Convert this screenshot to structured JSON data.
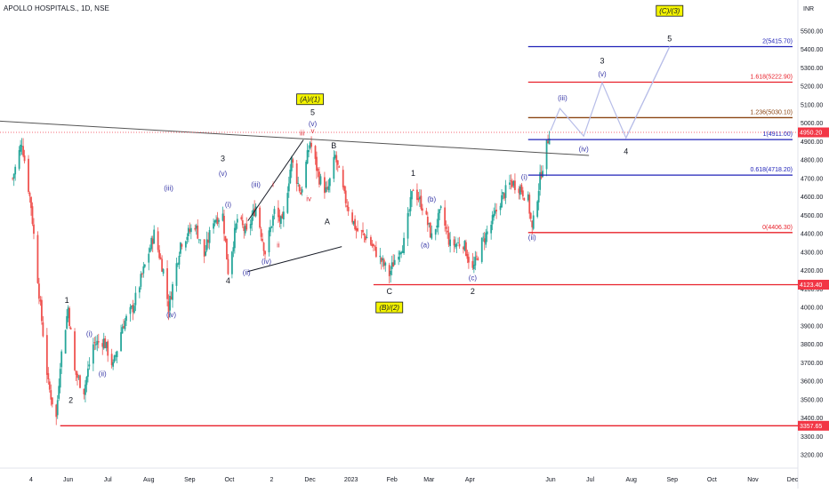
{
  "header": {
    "title": "APOLLO HOSPITALS., 1D, NSE"
  },
  "colors": {
    "up": "#26a69a",
    "down": "#ef5350",
    "wave_major": "#131722",
    "wave_minor": "#3939a8",
    "wave_sub": "#e0303a",
    "fib_blue": "#1f22b8",
    "fib_red": "#e8202a",
    "fib_brown": "#8b4513",
    "label_yellow": "#f5f500",
    "projection": "#b7bde8",
    "last_price_bg": "#f23645"
  },
  "chart_data": {
    "type": "candlestick",
    "title": "APOLLO HOSPITALS., 1D, NSE",
    "currency": "INR",
    "ylim": [
      3150,
      5640
    ],
    "y_ticks": [
      3200,
      3300,
      3400,
      3500,
      3600,
      3700,
      3800,
      3900,
      4000,
      4100,
      4200,
      4300,
      4400,
      4500,
      4600,
      4700,
      4800,
      4900,
      5000,
      5100,
      5200,
      5300,
      5400,
      5500
    ],
    "y_tick_labels": [
      "3200.00",
      "3300.00",
      "3400.00",
      "3500.00",
      "3600.00",
      "3700.00",
      "3800.00",
      "3900.00",
      "4000.00",
      "4100.00",
      "4200.00",
      "4300.00",
      "4400.00",
      "4500.00",
      "4600.00",
      "4700.00",
      "4800.00",
      "4900.00",
      "5000.00",
      "5100.00",
      "5200.00",
      "5300.00",
      "5400.00",
      "5500.00"
    ],
    "x_ticks": [
      {
        "label": "4",
        "date": "2022-05-04"
      },
      {
        "label": "Jun",
        "date": "2022-06-01"
      },
      {
        "label": "Jul",
        "date": "2022-07-01"
      },
      {
        "label": "Aug",
        "date": "2022-08-01"
      },
      {
        "label": "Sep",
        "date": "2022-09-01"
      },
      {
        "label": "Oct",
        "date": "2022-10-01"
      },
      {
        "label": "2",
        "date": "2022-11-02"
      },
      {
        "label": "Dec",
        "date": "2022-12-01"
      },
      {
        "label": "2023",
        "date": "2023-01-01"
      },
      {
        "label": "Feb",
        "date": "2023-02-01"
      },
      {
        "label": "Mar",
        "date": "2023-03-01"
      },
      {
        "label": "Apr",
        "date": "2023-04-01"
      },
      {
        "label": "Jun",
        "date": "2023-06-01"
      },
      {
        "label": "Jul",
        "date": "2023-07-01"
      },
      {
        "label": "Aug",
        "date": "2023-08-01"
      },
      {
        "label": "Sep",
        "date": "2023-09-01"
      },
      {
        "label": "Oct",
        "date": "2023-10-01"
      },
      {
        "label": "Nov",
        "date": "2023-11-01"
      },
      {
        "label": "Dec",
        "date": "2023-12-01"
      }
    ],
    "price_path": [
      [
        "2022-04-20",
        4700
      ],
      [
        "2022-04-27",
        4900
      ],
      [
        "2022-05-04",
        4550
      ],
      [
        "2022-05-11",
        4000
      ],
      [
        "2022-05-17",
        3580
      ],
      [
        "2022-05-23",
        3400
      ],
      [
        "2022-05-26",
        3700
      ],
      [
        "2022-06-01",
        4000
      ],
      [
        "2022-06-06",
        3650
      ],
      [
        "2022-06-13",
        3550
      ],
      [
        "2022-06-20",
        3800
      ],
      [
        "2022-06-28",
        3820
      ],
      [
        "2022-07-05",
        3680
      ],
      [
        "2022-07-12",
        3900
      ],
      [
        "2022-07-20",
        4000
      ],
      [
        "2022-07-28",
        4200
      ],
      [
        "2022-08-05",
        4400
      ],
      [
        "2022-08-12",
        4200
      ],
      [
        "2022-08-16",
        4000
      ],
      [
        "2022-08-25",
        4350
      ],
      [
        "2022-09-05",
        4450
      ],
      [
        "2022-09-12",
        4280
      ],
      [
        "2022-09-19",
        4480
      ],
      [
        "2022-09-26",
        4500
      ],
      [
        "2022-09-30",
        4200
      ],
      [
        "2022-10-07",
        4480
      ],
      [
        "2022-10-14",
        4400
      ],
      [
        "2022-10-21",
        4550
      ],
      [
        "2022-10-28",
        4300
      ],
      [
        "2022-11-04",
        4520
      ],
      [
        "2022-11-10",
        4450
      ],
      [
        "2022-11-17",
        4800
      ],
      [
        "2022-11-24",
        4620
      ],
      [
        "2022-12-01",
        4900
      ],
      [
        "2022-12-08",
        4700
      ],
      [
        "2022-12-14",
        4620
      ],
      [
        "2022-12-20",
        4820
      ],
      [
        "2022-12-27",
        4600
      ],
      [
        "2023-01-05",
        4420
      ],
      [
        "2023-01-13",
        4380
      ],
      [
        "2023-01-20",
        4300
      ],
      [
        "2023-01-30",
        4180
      ],
      [
        "2023-02-05",
        4300
      ],
      [
        "2023-02-10",
        4350
      ],
      [
        "2023-02-17",
        4650
      ],
      [
        "2023-02-24",
        4550
      ],
      [
        "2023-03-03",
        4380
      ],
      [
        "2023-03-10",
        4520
      ],
      [
        "2023-03-17",
        4340
      ],
      [
        "2023-03-27",
        4350
      ],
      [
        "2023-04-03",
        4200
      ],
      [
        "2023-04-10",
        4350
      ],
      [
        "2023-04-17",
        4450
      ],
      [
        "2023-04-24",
        4580
      ],
      [
        "2023-05-02",
        4680
      ],
      [
        "2023-05-09",
        4650
      ],
      [
        "2023-05-15",
        4580
      ],
      [
        "2023-05-18",
        4420
      ],
      [
        "2023-05-24",
        4700
      ],
      [
        "2023-05-31",
        4950
      ]
    ],
    "price_lines": [
      {
        "label": "2(5415.70)",
        "value": 5415.7,
        "color": "fib_blue",
        "from": "2023-05-15"
      },
      {
        "label": "1.618(5222.90)",
        "value": 5222.9,
        "color": "fib_red",
        "from": "2023-05-15"
      },
      {
        "label": "1.236(5030.10)",
        "value": 5030.1,
        "color": "fib_brown",
        "from": "2023-05-15"
      },
      {
        "label": "1(4911.00)",
        "value": 4911,
        "color": "fib_blue",
        "from": "2023-05-15"
      },
      {
        "label": "0.618(4718.20)",
        "value": 4718.2,
        "color": "fib_blue",
        "from": "2023-05-15"
      },
      {
        "label": "0(4406.30)",
        "value": 4406.3,
        "color": "fib_red",
        "from": "2023-05-15"
      }
    ],
    "horizontal_lines": [
      {
        "value": 3357.65,
        "label": "3357.65",
        "color": "fib_red",
        "from": "2022-05-26"
      },
      {
        "value": 4123.4,
        "label": "4123.40",
        "color": "fib_red",
        "from": "2023-01-18"
      }
    ],
    "last_price": {
      "value": 4950.2,
      "label": "4950.20"
    },
    "trendlines": [
      {
        "p1": [
          "2022-03-20",
          5020
        ],
        "p2": [
          "2023-06-30",
          4825
        ],
        "color": "#555555"
      },
      {
        "p1": [
          "2022-10-15",
          4470
        ],
        "p2": [
          "2022-11-26",
          4910
        ],
        "color": "#131722"
      },
      {
        "p1": [
          "2022-10-15",
          4195
        ],
        "p2": [
          "2022-12-25",
          4330
        ],
        "color": "#131722"
      }
    ],
    "projection_path": [
      [
        "2023-06-01",
        4960
      ],
      [
        "2023-06-08",
        5080
      ],
      [
        "2023-06-26",
        4930
      ],
      [
        "2023-07-10",
        5220
      ],
      [
        "2023-07-28",
        4920
      ],
      [
        "2023-08-30",
        5415
      ]
    ],
    "wave_labels": [
      {
        "text": "1",
        "date": "2022-05-31",
        "price": 4010,
        "pos": "above",
        "color": "wave_major"
      },
      {
        "text": "2",
        "date": "2022-06-03",
        "price": 3530,
        "pos": "below",
        "color": "wave_major"
      },
      {
        "text": "(i)",
        "date": "2022-06-17",
        "price": 3830,
        "pos": "above",
        "color": "wave_minor"
      },
      {
        "text": "(ii)",
        "date": "2022-06-27",
        "price": 3670,
        "pos": "below",
        "color": "wave_minor"
      },
      {
        "text": "(iii)",
        "date": "2022-08-16",
        "price": 4620,
        "pos": "above",
        "color": "wave_minor"
      },
      {
        "text": "(iv)",
        "date": "2022-08-18",
        "price": 3990,
        "pos": "below",
        "color": "wave_minor"
      },
      {
        "text": "3",
        "date": "2022-09-26",
        "price": 4780,
        "pos": "above",
        "color": "wave_major"
      },
      {
        "text": "(v)",
        "date": "2022-09-26",
        "price": 4700,
        "pos": "above",
        "color": "wave_minor"
      },
      {
        "text": "(i)",
        "date": "2022-09-30",
        "price": 4530,
        "pos": "above",
        "color": "wave_minor"
      },
      {
        "text": "4",
        "date": "2022-09-30",
        "price": 4180,
        "pos": "below",
        "color": "wave_major"
      },
      {
        "text": "(ii)",
        "date": "2022-10-14",
        "price": 4220,
        "pos": "below",
        "color": "wave_minor"
      },
      {
        "text": "(iii)",
        "date": "2022-10-21",
        "price": 4640,
        "pos": "above",
        "color": "wave_minor"
      },
      {
        "text": "i",
        "date": "2022-11-03",
        "price": 4640,
        "pos": "above",
        "color": "wave_sub"
      },
      {
        "text": "(iv)",
        "date": "2022-10-29",
        "price": 4280,
        "pos": "below",
        "color": "wave_minor"
      },
      {
        "text": "ii",
        "date": "2022-11-07",
        "price": 4370,
        "pos": "below",
        "color": "wave_sub"
      },
      {
        "text": "iii",
        "date": "2022-11-25",
        "price": 4920,
        "pos": "above",
        "color": "wave_sub"
      },
      {
        "text": "iv",
        "date": "2022-11-30",
        "price": 4620,
        "pos": "below",
        "color": "wave_sub"
      },
      {
        "text": "v",
        "date": "2022-12-03",
        "price": 4930,
        "pos": "above",
        "color": "wave_sub"
      },
      {
        "text": "(v)",
        "date": "2022-12-03",
        "price": 4970,
        "pos": "above",
        "color": "wave_minor"
      },
      {
        "text": "5",
        "date": "2022-12-03",
        "price": 5030,
        "pos": "above",
        "color": "wave_major"
      },
      {
        "text": "B",
        "date": "2022-12-19",
        "price": 4850,
        "pos": "above",
        "color": "wave_major"
      },
      {
        "text": "A",
        "date": "2022-12-14",
        "price": 4500,
        "pos": "below",
        "color": "wave_major"
      },
      {
        "text": "C",
        "date": "2023-01-30",
        "price": 4120,
        "pos": "below",
        "color": "wave_major"
      },
      {
        "text": "1",
        "date": "2023-02-17",
        "price": 4700,
        "pos": "above",
        "color": "wave_major"
      },
      {
        "text": "(b)",
        "date": "2023-03-03",
        "price": 4560,
        "pos": "above",
        "color": "wave_minor"
      },
      {
        "text": "(a)",
        "date": "2023-02-26",
        "price": 4370,
        "pos": "below",
        "color": "wave_minor"
      },
      {
        "text": "(c)",
        "date": "2023-04-03",
        "price": 4190,
        "pos": "below",
        "color": "wave_minor"
      },
      {
        "text": "2",
        "date": "2023-04-03",
        "price": 4120,
        "pos": "below",
        "color": "wave_major"
      },
      {
        "text": "(i)",
        "date": "2023-05-12",
        "price": 4680,
        "pos": "above",
        "color": "wave_minor"
      },
      {
        "text": "(ii)",
        "date": "2023-05-18",
        "price": 4410,
        "pos": "below",
        "color": "wave_minor"
      },
      {
        "text": "(iii)",
        "date": "2023-06-10",
        "price": 5110,
        "pos": "above",
        "color": "wave_minor"
      },
      {
        "text": "(v)",
        "date": "2023-07-10",
        "price": 5240,
        "pos": "above",
        "color": "wave_minor"
      },
      {
        "text": "3",
        "date": "2023-07-10",
        "price": 5310,
        "pos": "above",
        "color": "wave_major"
      },
      {
        "text": "(iv)",
        "date": "2023-06-26",
        "price": 4890,
        "pos": "below",
        "color": "wave_minor"
      },
      {
        "text": "4",
        "date": "2023-07-28",
        "price": 4880,
        "pos": "below",
        "color": "wave_major"
      },
      {
        "text": "5",
        "date": "2023-08-30",
        "price": 5430,
        "pos": "above",
        "color": "wave_major"
      }
    ],
    "boxed_labels": [
      {
        "text": "(A)/(1)",
        "date": "2022-12-01",
        "price": 5130
      },
      {
        "text": "(B)/(2)",
        "date": "2023-01-30",
        "price": 4000
      },
      {
        "text": "(C)/(3)",
        "date": "2023-08-30",
        "price": 5610
      }
    ]
  }
}
